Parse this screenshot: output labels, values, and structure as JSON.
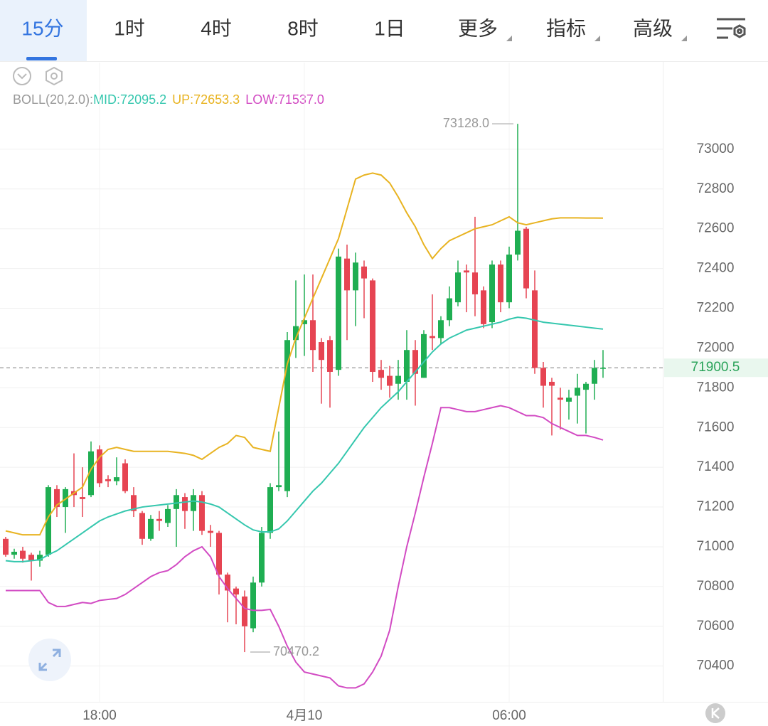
{
  "toolbar": {
    "tabs": [
      "15分",
      "1时",
      "4时",
      "8时",
      "1日",
      "更多",
      "指标",
      "高级"
    ]
  },
  "chart_data": {
    "type": "candlestick",
    "indicator": "BOLL(20,2.0):",
    "categories": [
      null,
      null,
      null,
      null,
      null,
      null,
      null,
      null,
      null,
      null,
      null,
      "18:00",
      null,
      null,
      null,
      null,
      null,
      null,
      null,
      null,
      null,
      null,
      null,
      null,
      null,
      null,
      null,
      null,
      null,
      null,
      null,
      null,
      null,
      null,
      null,
      "4月10",
      null,
      null,
      null,
      null,
      null,
      null,
      null,
      null,
      null,
      null,
      null,
      null,
      null,
      null,
      null,
      null,
      null,
      null,
      null,
      null,
      null,
      null,
      null,
      "06:00",
      null,
      null,
      null,
      null,
      null,
      null,
      null,
      null,
      null,
      null,
      null
    ],
    "open": [
      71040,
      70960,
      70980,
      70960,
      70930,
      70960,
      71290,
      71200,
      71280,
      71250,
      71260,
      71490,
      71340,
      71330,
      71420,
      71260,
      71170,
      71040,
      71140,
      71120,
      71190,
      71250,
      71180,
      71260,
      71080,
      71070,
      70860,
      70790,
      70750,
      70590,
      70820,
      71070,
      71300,
      71280,
      72040,
      72120,
      72140,
      72030,
      72040,
      71890,
      72450,
      72290,
      72410,
      72340,
      71890,
      71860,
      71820,
      71830,
      71990,
      71850,
      72060,
      72050,
      72140,
      72230,
      72390,
      72380,
      72290,
      72130,
      72420,
      72230,
      72470,
      72600,
      72290,
      71900,
      71830,
      71750,
      71730,
      71760,
      71790,
      71820,
      71900
    ],
    "high": [
      71050,
      70990,
      71000,
      70970,
      70980,
      71310,
      71310,
      71300,
      71470,
      71400,
      71530,
      71510,
      71360,
      71450,
      71440,
      71300,
      71180,
      71160,
      71180,
      71210,
      71290,
      71270,
      71290,
      71280,
      71110,
      71080,
      70870,
      70800,
      70780,
      70850,
      71100,
      71320,
      71580,
      72080,
      72340,
      72370,
      72370,
      72050,
      72060,
      72500,
      72520,
      72480,
      72440,
      72350,
      71940,
      71910,
      71940,
      72090,
      72040,
      72090,
      72270,
      72160,
      72310,
      72440,
      72420,
      72660,
      72310,
      72440,
      72440,
      72510,
      73128.0,
      72610,
      72390,
      71930,
      71850,
      71800,
      71790,
      71870,
      71830,
      71940,
      71990
    ],
    "low": [
      70950,
      70940,
      70920,
      70830,
      70900,
      70950,
      71150,
      71070,
      71200,
      71150,
      71250,
      71300,
      71300,
      71310,
      71270,
      71150,
      71010,
      71030,
      71080,
      71100,
      71000,
      71090,
      71080,
      71060,
      71000,
      70760,
      70620,
      70610,
      70470.2,
      70570,
      70800,
      71040,
      71280,
      71250,
      71950,
      71960,
      71880,
      71720,
      71700,
      71860,
      72040,
      72110,
      72150,
      71830,
      71790,
      71750,
      71740,
      71740,
      71710,
      71850,
      71990,
      72020,
      72110,
      72210,
      72180,
      72160,
      72100,
      72100,
      72180,
      72200,
      72440,
      72250,
      71870,
      71700,
      71560,
      71590,
      71640,
      71620,
      71570,
      71740,
      71850
    ],
    "close": [
      70960,
      70975,
      70940,
      70930,
      70960,
      71300,
      71200,
      71290,
      71260,
      71240,
      71480,
      71320,
      71330,
      71350,
      71280,
      71180,
      71040,
      71140,
      71130,
      71190,
      71260,
      71180,
      71260,
      71080,
      71070,
      70860,
      70780,
      70760,
      70600,
      70820,
      71070,
      71300,
      71310,
      72040,
      72110,
      72140,
      71990,
      71940,
      71880,
      72460,
      72290,
      72430,
      72350,
      71880,
      71850,
      71810,
      71860,
      71990,
      71870,
      72070,
      72050,
      72140,
      72250,
      72380,
      72380,
      72270,
      72120,
      72420,
      72230,
      72470,
      72590,
      72300,
      71900,
      71810,
      71810,
      71740,
      71750,
      71800,
      71820,
      71900,
      71900.5
    ],
    "up_color": "#1fae52",
    "down_color": "#e64452",
    "series": [
      {
        "name": "MID:72095.2",
        "color": "#35c7ae",
        "values": [
          70930,
          70925,
          70925,
          70930,
          70935,
          70960,
          70980,
          71010,
          71040,
          71070,
          71100,
          71130,
          71150,
          71165,
          71180,
          71190,
          71200,
          71205,
          71210,
          71215,
          71220,
          71225,
          71230,
          71225,
          71215,
          71200,
          71170,
          71140,
          71110,
          71085,
          71075,
          71075,
          71090,
          71130,
          71180,
          71230,
          71280,
          71320,
          71370,
          71420,
          71480,
          71540,
          71600,
          71650,
          71700,
          71740,
          71780,
          71830,
          71880,
          71930,
          71980,
          72020,
          72050,
          72070,
          72090,
          72100,
          72110,
          72120,
          72130,
          72145,
          72155,
          72150,
          72140,
          72130,
          72125,
          72120,
          72115,
          72110,
          72105,
          72100,
          72095.2
        ]
      },
      {
        "name": "UP:72653.3",
        "color": "#e8b321",
        "values": [
          71080,
          71070,
          71060,
          71060,
          71060,
          71150,
          71210,
          71240,
          71270,
          71300,
          71390,
          71450,
          71490,
          71500,
          71490,
          71480,
          71480,
          71480,
          71480,
          71480,
          71475,
          71470,
          71460,
          71440,
          71470,
          71500,
          71520,
          71560,
          71550,
          71500,
          71490,
          71480,
          71700,
          71920,
          72050,
          72150,
          72250,
          72350,
          72450,
          72550,
          72700,
          72850,
          72870,
          72880,
          72870,
          72830,
          72760,
          72680,
          72610,
          72520,
          72450,
          72500,
          72540,
          72560,
          72580,
          72600,
          72610,
          72620,
          72640,
          72660,
          72630,
          72620,
          72630,
          72640,
          72650,
          72655,
          72655,
          72655,
          72654,
          72654,
          72653.3
        ]
      },
      {
        "name": "LOW:71537.0",
        "color": "#d24bc3",
        "values": [
          70780,
          70780,
          70780,
          70780,
          70780,
          70720,
          70700,
          70700,
          70710,
          70720,
          70715,
          70730,
          70735,
          70740,
          70760,
          70790,
          70820,
          70850,
          70870,
          70880,
          70910,
          70950,
          70980,
          71000,
          70950,
          70850,
          70790,
          70740,
          70690,
          70680,
          70680,
          70685,
          70600,
          70500,
          70420,
          70370,
          70360,
          70350,
          70340,
          70300,
          70290,
          70290,
          70310,
          70370,
          70450,
          70580,
          70800,
          71000,
          71170,
          71350,
          71520,
          71700,
          71700,
          71690,
          71680,
          71680,
          71690,
          71700,
          71710,
          71700,
          71680,
          71660,
          71660,
          71650,
          71620,
          71600,
          71580,
          71560,
          71560,
          71550,
          71537.0
        ]
      }
    ],
    "ylim": [
      70220,
      73436
    ],
    "yticks": [
      70400,
      70600,
      70800,
      71000,
      71200,
      71400,
      71600,
      71800,
      72000,
      72200,
      72400,
      72600,
      72800,
      73000
    ],
    "grid": true,
    "annotations": [
      {
        "value": 73128.0,
        "label": "73128.0",
        "index": 60
      },
      {
        "value": 70470.2,
        "label": "70470.2",
        "index": 28
      }
    ],
    "last_price": {
      "value": 71900.5,
      "label": "71900.5"
    }
  }
}
